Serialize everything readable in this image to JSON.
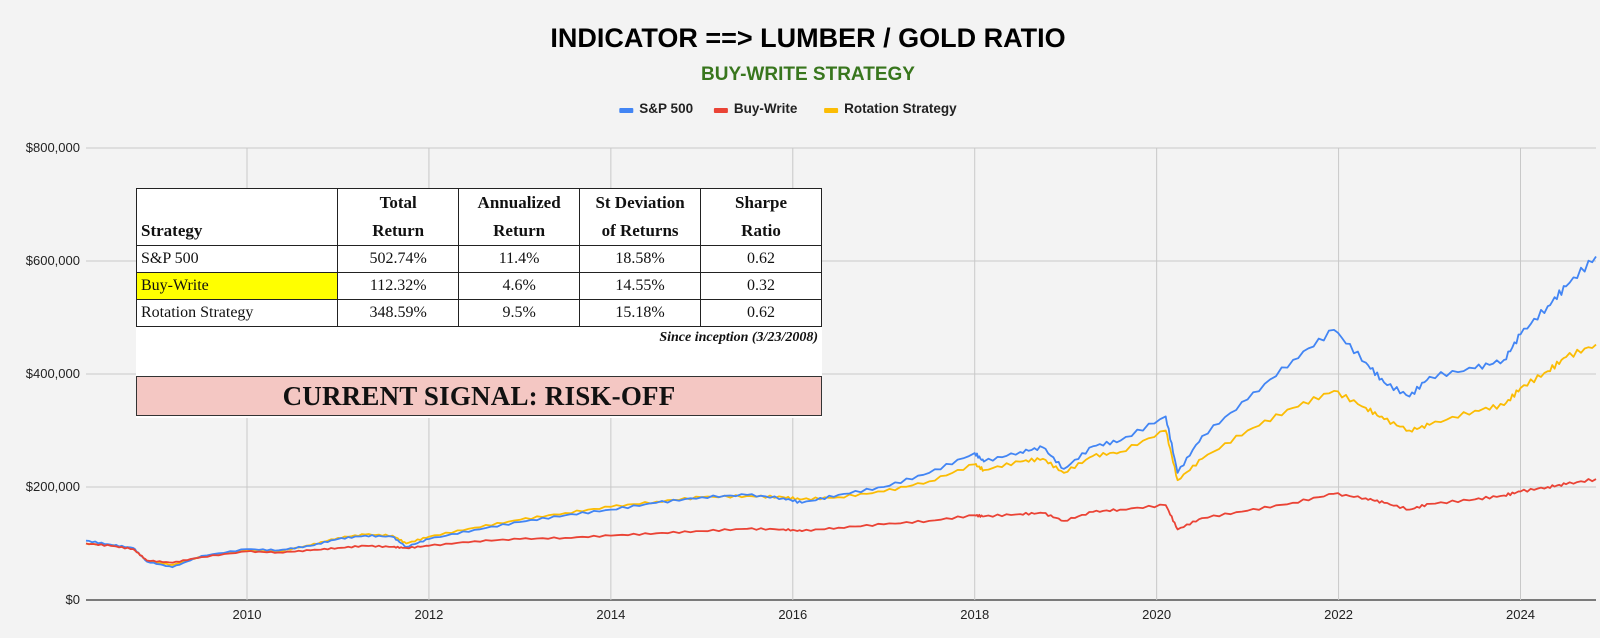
{
  "chart_data": {
    "type": "line",
    "title": "INDICATOR ==> LUMBER / GOLD RATIO",
    "subtitle": "BUY-WRITE STRATEGY",
    "xlabel": "",
    "ylabel": "",
    "xlim": [
      2008.23,
      2024.83
    ],
    "ylim": [
      0,
      800000
    ],
    "grid": true,
    "legend_position": "top-center",
    "x_ticks": [
      "2010",
      "2012",
      "2014",
      "2016",
      "2018",
      "2020",
      "2022",
      "2024"
    ],
    "y_ticks": [
      "$0",
      "$200,000",
      "$400,000",
      "$600,000",
      "$800,000"
    ],
    "x": [
      2008.23,
      2008.5,
      2008.75,
      2008.9,
      2009.18,
      2009.5,
      2010.0,
      2010.35,
      2010.7,
      2011.0,
      2011.3,
      2011.6,
      2011.75,
      2012.0,
      2012.5,
      2013.0,
      2013.5,
      2014.0,
      2014.5,
      2015.0,
      2015.5,
      2015.9,
      2016.1,
      2016.5,
      2017.0,
      2017.5,
      2018.0,
      2018.1,
      2018.5,
      2018.75,
      2018.98,
      2019.3,
      2019.6,
      2020.1,
      2020.23,
      2020.5,
      2021.0,
      2021.5,
      2021.95,
      2022.3,
      2022.5,
      2022.78,
      2023.0,
      2023.5,
      2023.82,
      2024.0,
      2024.3,
      2024.5,
      2024.83
    ],
    "series": [
      {
        "name": "S&P 500",
        "color": "#4285f4",
        "values": [
          105000,
          98000,
          92000,
          68000,
          58000,
          78000,
          90000,
          88000,
          96000,
          108000,
          114000,
          112000,
          94000,
          108000,
          124000,
          138000,
          150000,
          160000,
          172000,
          182000,
          186000,
          180000,
          172000,
          186000,
          200000,
          225000,
          260000,
          245000,
          262000,
          270000,
          232000,
          272000,
          282000,
          325000,
          225000,
          290000,
          355000,
          425000,
          478000,
          420000,
          385000,
          360000,
          395000,
          410000,
          425000,
          470000,
          520000,
          555000,
          608000
        ]
      },
      {
        "name": "Buy-Write",
        "color": "#ea4335",
        "values": [
          100000,
          96000,
          90000,
          70000,
          66000,
          76000,
          86000,
          84000,
          88000,
          92000,
          96000,
          94000,
          92000,
          96000,
          104000,
          108000,
          110000,
          114000,
          118000,
          122000,
          126000,
          125000,
          122000,
          128000,
          134000,
          140000,
          150000,
          148000,
          152000,
          154000,
          140000,
          156000,
          160000,
          168000,
          125000,
          145000,
          158000,
          172000,
          188000,
          180000,
          172000,
          160000,
          170000,
          178000,
          185000,
          192000,
          200000,
          205000,
          214000
        ]
      },
      {
        "name": "Rotation Strategy",
        "color": "#fbbc04",
        "values": [
          100000,
          97000,
          91000,
          69000,
          62000,
          77000,
          88000,
          86000,
          97000,
          110000,
          116000,
          114000,
          100000,
          112000,
          128000,
          142000,
          154000,
          165000,
          174000,
          182000,
          184000,
          182000,
          178000,
          182000,
          192000,
          210000,
          240000,
          230000,
          245000,
          250000,
          225000,
          255000,
          262000,
          300000,
          212000,
          250000,
          300000,
          340000,
          370000,
          340000,
          320000,
          300000,
          310000,
          335000,
          345000,
          375000,
          405000,
          430000,
          452000
        ]
      }
    ]
  },
  "stats_table": {
    "headers": [
      [
        "",
        "Strategy"
      ],
      [
        "Total",
        "Return"
      ],
      [
        "Annualized",
        "Return"
      ],
      [
        "St Deviation",
        "of Returns"
      ],
      [
        "Sharpe",
        "Ratio"
      ]
    ],
    "rows": [
      [
        "S&P 500",
        "502.74%",
        "11.4%",
        "18.58%",
        "0.62"
      ],
      [
        "Buy-Write",
        "112.32%",
        "4.6%",
        "14.55%",
        "0.32"
      ],
      [
        "Rotation Strategy",
        "348.59%",
        "9.5%",
        "15.18%",
        "0.62"
      ]
    ],
    "highlight_row": "Buy-Write",
    "highlight_color": "#ffff00",
    "note": "Since inception (3/23/2008)"
  },
  "signal": {
    "text": "CURRENT SIGNAL: RISK-OFF",
    "color": "#f4c7c3"
  }
}
